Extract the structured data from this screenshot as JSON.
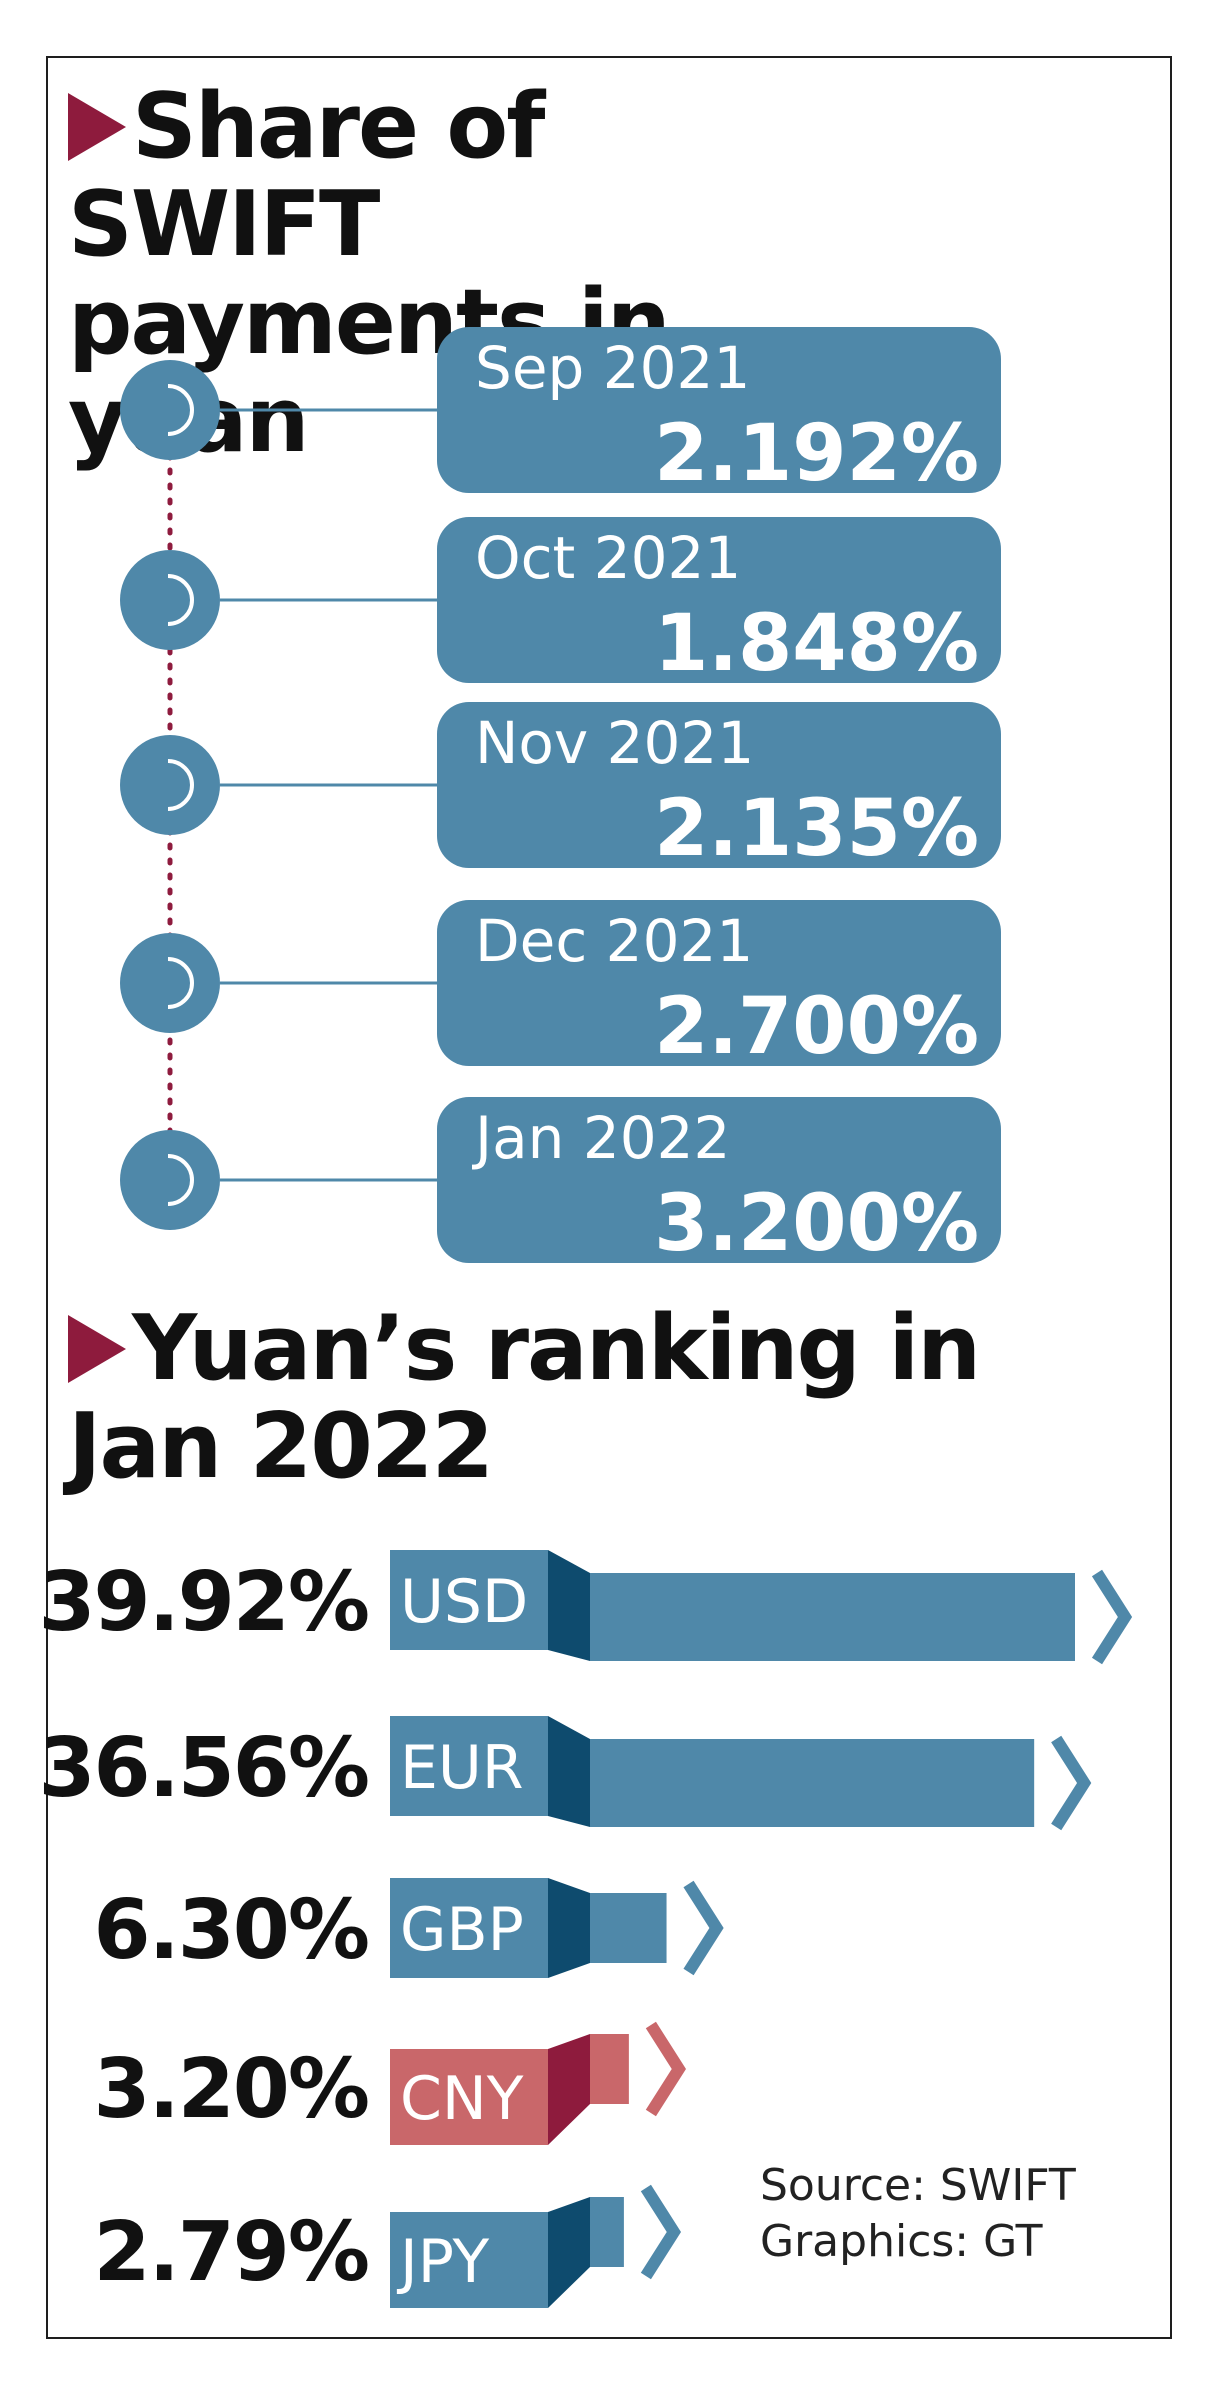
{
  "heading1": "Share of SWIFT payments in yuan",
  "heading2": "Yuan’s ranking in Jan 2022",
  "source_line": "Source: SWIFT",
  "graphics_line": "Graphics: GT",
  "colors": {
    "accent": "#8e1b3d",
    "blue": "#4f88a9",
    "dark_blue": "#0e4b6e",
    "cny": "#c9676a",
    "cny_dark": "#8e1b3d"
  },
  "chart_data": [
    {
      "type": "line",
      "title": "Share of SWIFT payments in yuan",
      "series": [
        {
          "x": [
            "Sep 2021",
            "Oct 2021",
            "Nov 2021",
            "Dec 2021",
            "Jan 2022"
          ],
          "values": [
            2.192,
            1.848,
            2.135,
            2.7,
            3.2
          ],
          "labels": [
            "2.192%",
            "1.848%",
            "2.135%",
            "2.700%",
            "3.200%"
          ]
        }
      ]
    },
    {
      "type": "bar",
      "title": "Yuan’s ranking in Jan 2022",
      "categories": [
        "USD",
        "EUR",
        "GBP",
        "CNY",
        "JPY"
      ],
      "values": [
        39.92,
        36.56,
        6.3,
        3.2,
        2.79
      ],
      "labels": [
        "39.92%",
        "36.56%",
        "6.30%",
        "3.20%",
        "2.79%"
      ],
      "highlight": "CNY"
    }
  ]
}
